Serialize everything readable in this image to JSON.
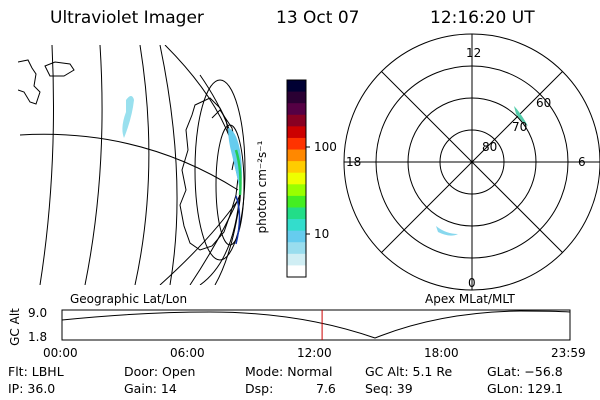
{
  "header": {
    "instrument": "Ultraviolet Imager",
    "date": "13 Oct 07",
    "time": "12:16:20 UT"
  },
  "colorbar": {
    "unit_label": "photon cm⁻²s⁻¹",
    "ticks": [
      "100",
      "10"
    ],
    "colors": [
      "#000033",
      "#2a0033",
      "#550044",
      "#880022",
      "#cc0000",
      "#ff3300",
      "#ff8800",
      "#ffcc00",
      "#eeff00",
      "#99ff00",
      "#44ee22",
      "#22dd88",
      "#33ddcc",
      "#66ccee",
      "#99ddee",
      "#d0eef4",
      "#ffffff"
    ]
  },
  "polar_plot": {
    "mlt_labels": {
      "top": "12",
      "left": "18",
      "right": "6",
      "bottom": "0"
    },
    "lat_labels": [
      "60",
      "70",
      "80"
    ]
  },
  "orbit_panel": {
    "left_title": "Geographic Lat/Lon",
    "right_title": "Apex MLat/MLT",
    "y_axis_label": "GC Alt",
    "y_ticks": [
      "9.0",
      "1.8"
    ],
    "x_ticks": [
      "00:00",
      "06:00",
      "12:00",
      "18:00",
      "23:59"
    ],
    "current_time_fraction": 0.512,
    "marker_color": "#cc0000"
  },
  "info": {
    "flt": "Flt: LBHL",
    "ip": "IP: 36.0",
    "door": "Door: Open",
    "gain": "Gain: 14",
    "mode": "Mode: Normal",
    "dsp_label": "Dsp:",
    "dsp_value": "7.6",
    "gc_alt": "GC Alt: 5.1 Re",
    "seq": "Seq: 39",
    "glat": "GLat: −56.8",
    "glon": "GLon: 129.1"
  }
}
